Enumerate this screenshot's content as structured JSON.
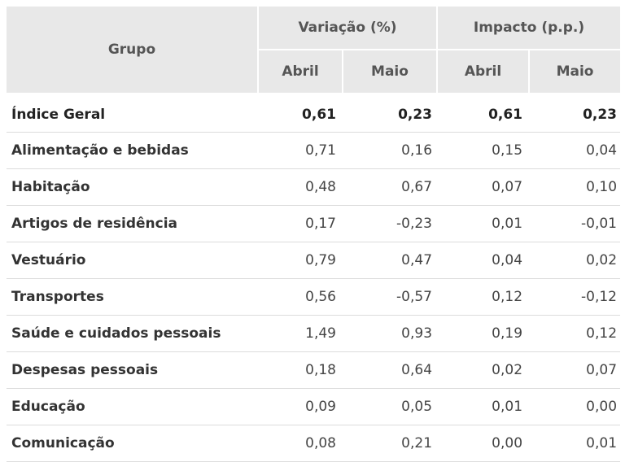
{
  "header": {
    "group": "Grupo",
    "variacao": "Variação (%)",
    "impacto": "Impacto (p.p.)",
    "abril": "Abril",
    "maio": "Maio"
  },
  "rows": [
    {
      "name": "Índice Geral",
      "var_abril": "0,61",
      "var_maio": "0,23",
      "imp_abril": "0,61",
      "imp_maio": "0,23"
    },
    {
      "name": "Alimentação e bebidas",
      "var_abril": "0,71",
      "var_maio": "0,16",
      "imp_abril": "0,15",
      "imp_maio": "0,04"
    },
    {
      "name": "Habitação",
      "var_abril": "0,48",
      "var_maio": "0,67",
      "imp_abril": "0,07",
      "imp_maio": "0,10"
    },
    {
      "name": "Artigos de residência",
      "var_abril": "0,17",
      "var_maio": "-0,23",
      "imp_abril": "0,01",
      "imp_maio": "-0,01"
    },
    {
      "name": "Vestuário",
      "var_abril": "0,79",
      "var_maio": "0,47",
      "imp_abril": "0,04",
      "imp_maio": "0,02"
    },
    {
      "name": "Transportes",
      "var_abril": "0,56",
      "var_maio": "-0,57",
      "imp_abril": "0,12",
      "imp_maio": "-0,12"
    },
    {
      "name": "Saúde e cuidados pessoais",
      "var_abril": "1,49",
      "var_maio": "0,93",
      "imp_abril": "0,19",
      "imp_maio": "0,12"
    },
    {
      "name": "Despesas pessoais",
      "var_abril": "0,18",
      "var_maio": "0,64",
      "imp_abril": "0,02",
      "imp_maio": "0,07"
    },
    {
      "name": "Educação",
      "var_abril": "0,09",
      "var_maio": "0,05",
      "imp_abril": "0,01",
      "imp_maio": "0,00"
    },
    {
      "name": "Comunicação",
      "var_abril": "0,08",
      "var_maio": "0,21",
      "imp_abril": "0,00",
      "imp_maio": "0,01"
    }
  ]
}
